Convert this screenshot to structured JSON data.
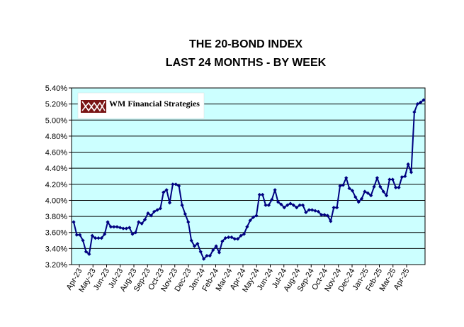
{
  "logo": {
    "text": "WM Financial Strategies"
  },
  "chart_data": {
    "type": "line",
    "title": [
      "THE 20-BOND INDEX",
      "LAST 24 MONTHS - BY WEEK"
    ],
    "xlabel": "",
    "ylabel": "",
    "ylim": [
      3.2,
      5.4
    ],
    "ytick_values": [
      3.2,
      3.4,
      3.6,
      3.8,
      4.0,
      4.2,
      4.4,
      4.6,
      4.8,
      5.0,
      5.2,
      5.4
    ],
    "ytick_labels": [
      "3.20%",
      "3.40%",
      "3.60%",
      "3.80%",
      "4.00%",
      "4.20%",
      "4.40%",
      "4.60%",
      "4.80%",
      "5.00%",
      "5.20%",
      "5.40%"
    ],
    "month_labels": [
      "Apr-23",
      "May-23",
      "Jun-23",
      "Jul-23",
      "Aug-23",
      "Sep-23",
      "Oct-23",
      "Nov-23",
      "Dec-23",
      "Jan-24",
      "Feb-24",
      "Mar-24",
      "Apr-24",
      "May-24",
      "Jun-24",
      "Jul-24",
      "Aug-24",
      "Sep-24",
      "Oct-24",
      "Nov-24",
      "Dec-24",
      "Jan-25",
      "Feb-25",
      "Mar-25",
      "Apr-25"
    ],
    "grid": true,
    "colors": {
      "plot_bg": "#ccffff",
      "line": "#000080",
      "grid": "#000000"
    },
    "series": [
      {
        "values": [
          3.73,
          3.57,
          3.57,
          3.5,
          3.36,
          3.33,
          3.56,
          3.53,
          3.53,
          3.53,
          3.58,
          3.73,
          3.67,
          3.67,
          3.67,
          3.66,
          3.65,
          3.65,
          3.66,
          3.58,
          3.6,
          3.73,
          3.71,
          3.76,
          3.84,
          3.81,
          3.86,
          3.88,
          3.9,
          4.1,
          4.13,
          3.97,
          4.2,
          4.2,
          4.18,
          3.94,
          3.83,
          3.73,
          3.5,
          3.43,
          3.46,
          3.36,
          3.27,
          3.31,
          3.31,
          3.38,
          3.43,
          3.35,
          3.49,
          3.53,
          3.54,
          3.54,
          3.52,
          3.52,
          3.56,
          3.58,
          3.67,
          3.75,
          3.79,
          3.81,
          4.07,
          4.07,
          3.94,
          3.94,
          4.01,
          4.13,
          3.98,
          3.95,
          3.91,
          3.94,
          3.96,
          3.94,
          3.91,
          3.94,
          3.94,
          3.85,
          3.88,
          3.88,
          3.87,
          3.86,
          3.82,
          3.82,
          3.81,
          3.74,
          3.91,
          3.91,
          4.18,
          4.19,
          4.28,
          4.15,
          4.12,
          4.04,
          3.98,
          4.02,
          4.11,
          4.09,
          4.06,
          4.17,
          4.28,
          4.17,
          4.11,
          4.06,
          4.26,
          4.26,
          4.16,
          4.16,
          4.29,
          4.3,
          4.45,
          4.35,
          5.1,
          5.2,
          5.22,
          5.25
        ]
      }
    ]
  }
}
